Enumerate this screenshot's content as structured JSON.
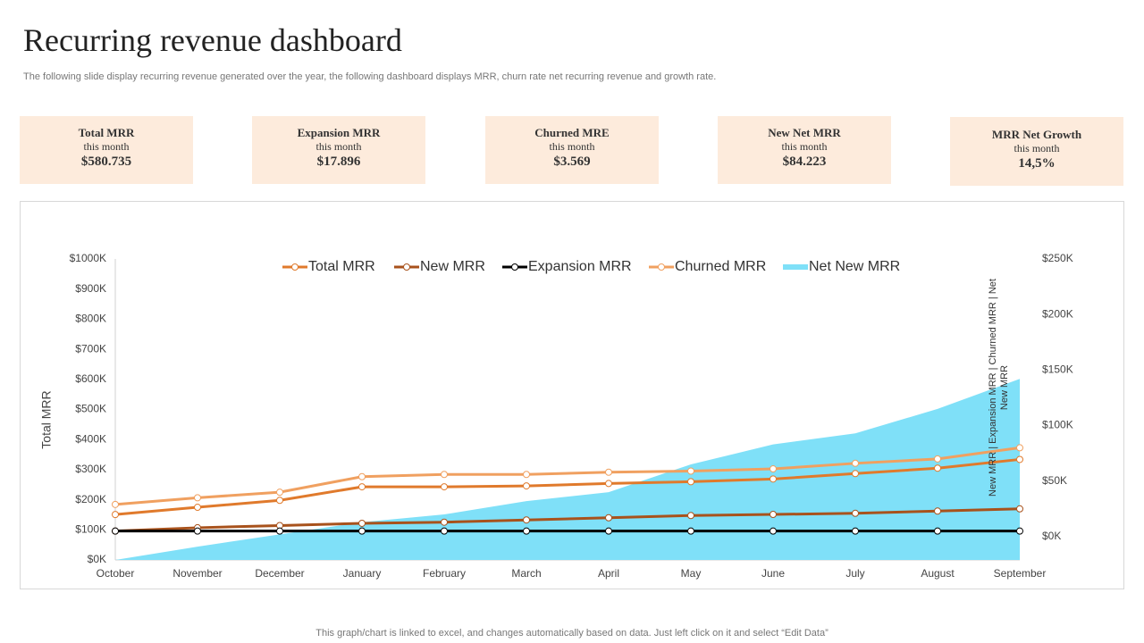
{
  "header": {
    "title": "Recurring revenue dashboard",
    "subtitle": "The following slide display recurring revenue generated over the year,  the following dashboard displays MRR, churn rate  net recurring revenue and growth rate."
  },
  "cards": [
    {
      "title": "Total MRR",
      "subtitle": "this month",
      "value": "$580.735"
    },
    {
      "title": "Expansion MRR",
      "subtitle": "this month",
      "value": "$17.896"
    },
    {
      "title": "Churned MRE",
      "subtitle": "this month",
      "value": "$3.569"
    },
    {
      "title": "New Net MRR",
      "subtitle": "this month",
      "value": "$84.223"
    },
    {
      "title": "MRR Net Growth",
      "subtitle": "this month",
      "value": "14,5%"
    }
  ],
  "chart_data": {
    "type": "line",
    "y_label": "Total MRR",
    "y2_label": "New MRR | Expansion MRR | Churned MRR | Net New MRR",
    "categories": [
      "October",
      "November",
      "December",
      "January",
      "February",
      "March",
      "April",
      "May",
      "June",
      "July",
      "August",
      "September"
    ],
    "series": [
      {
        "name": "Total MRR",
        "color": "#e07a2c",
        "values": [
          151,
          175,
          198,
          243,
          243,
          246,
          254,
          260,
          269,
          287,
          305,
          334
        ]
      },
      {
        "name": "New MRR",
        "color": "#a8521c",
        "axis": "y2",
        "values": [
          5,
          8,
          10,
          12,
          13,
          15,
          17,
          19,
          20,
          21,
          23,
          25
        ]
      },
      {
        "name": "Expansion MRR",
        "color": "#000000",
        "axis": "y2",
        "values": [
          5,
          5,
          5,
          5,
          5,
          5,
          5,
          5,
          5,
          5,
          5,
          5
        ]
      },
      {
        "name": "Churned MRR",
        "color": "#f0a060",
        "axis": "y2",
        "values": [
          29,
          35,
          40,
          54,
          56,
          56,
          58,
          59,
          61,
          66,
          70,
          80
        ]
      },
      {
        "name": "Net New MRR",
        "color": "#7fe0f8",
        "axis": "y2",
        "area": true,
        "values": [
          -21,
          -9,
          2,
          13,
          20,
          32,
          40,
          65,
          83,
          93,
          115,
          142
        ]
      }
    ],
    "ylim": [
      0,
      1000
    ],
    "yticks": [
      {
        "value": 0,
        "label": "$0K"
      },
      {
        "value": 100,
        "label": "$100K"
      },
      {
        "value": 200,
        "label": "$200K"
      },
      {
        "value": 300,
        "label": "$300K"
      },
      {
        "value": 400,
        "label": "$400K"
      },
      {
        "value": 500,
        "label": "$500K"
      },
      {
        "value": 600,
        "label": "$600K"
      },
      {
        "value": 700,
        "label": "$700K"
      },
      {
        "value": 800,
        "label": "$800K"
      },
      {
        "value": 900,
        "label": "$900K"
      },
      {
        "value": 1000,
        "label": "$1000K"
      }
    ],
    "y2lim": [
      -21,
      250
    ],
    "y2ticks": [
      {
        "value": 0,
        "label": "$0K"
      },
      {
        "value": 50,
        "label": "$50K"
      },
      {
        "value": 100,
        "label": "$100K"
      },
      {
        "value": 150,
        "label": "$150K"
      },
      {
        "value": 200,
        "label": "$200K"
      },
      {
        "value": 250,
        "label": "$250K"
      }
    ],
    "legend": "top"
  },
  "footer": "This graph/chart is linked to excel,  and changes automatically based on data. Just left click on it and select “Edit Data”"
}
